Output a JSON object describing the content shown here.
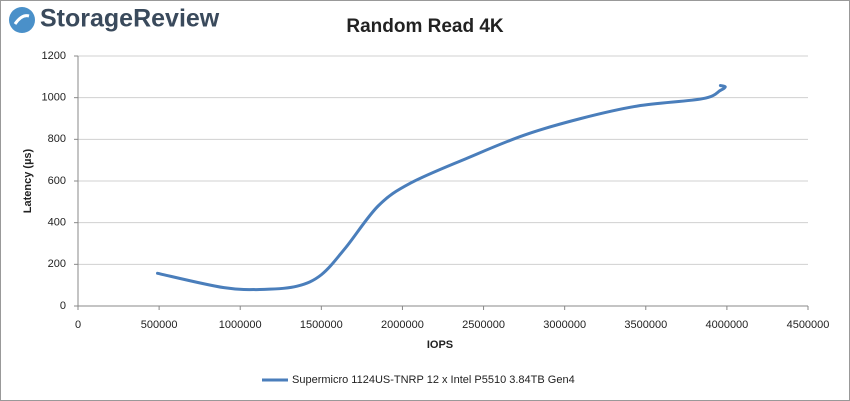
{
  "logo": "StorageReview",
  "chart_data": {
    "type": "line",
    "title": "Random Read 4K",
    "x_label": "IOPS",
    "y_label": "Latency (µs)",
    "series": [
      {
        "name": "Supermicro 1124US-TNRP 12 x Intel P5510 3.84TB Gen4",
        "color": "#4a7ebb",
        "x": [
          490000,
          900000,
          1150000,
          1350000,
          1500000,
          1650000,
          1850000,
          2050000,
          2400000,
          2750000,
          3100000,
          3450000,
          3850000,
          3960000,
          3990000,
          3960000
        ],
        "values": [
          157,
          88,
          80,
          95,
          150,
          280,
          480,
          590,
          710,
          820,
          900,
          960,
          995,
          1035,
          1052,
          1058
        ]
      }
    ],
    "xlim": [
      0,
      4500000
    ],
    "xticks": [
      0,
      500000,
      1000000,
      1500000,
      2000000,
      2500000,
      3000000,
      3500000,
      4000000,
      4500000
    ],
    "ylim": [
      0,
      1200
    ],
    "yticks": [
      0,
      200,
      400,
      600,
      800,
      1000,
      1200
    ],
    "grid": true,
    "legend": "bottom"
  }
}
